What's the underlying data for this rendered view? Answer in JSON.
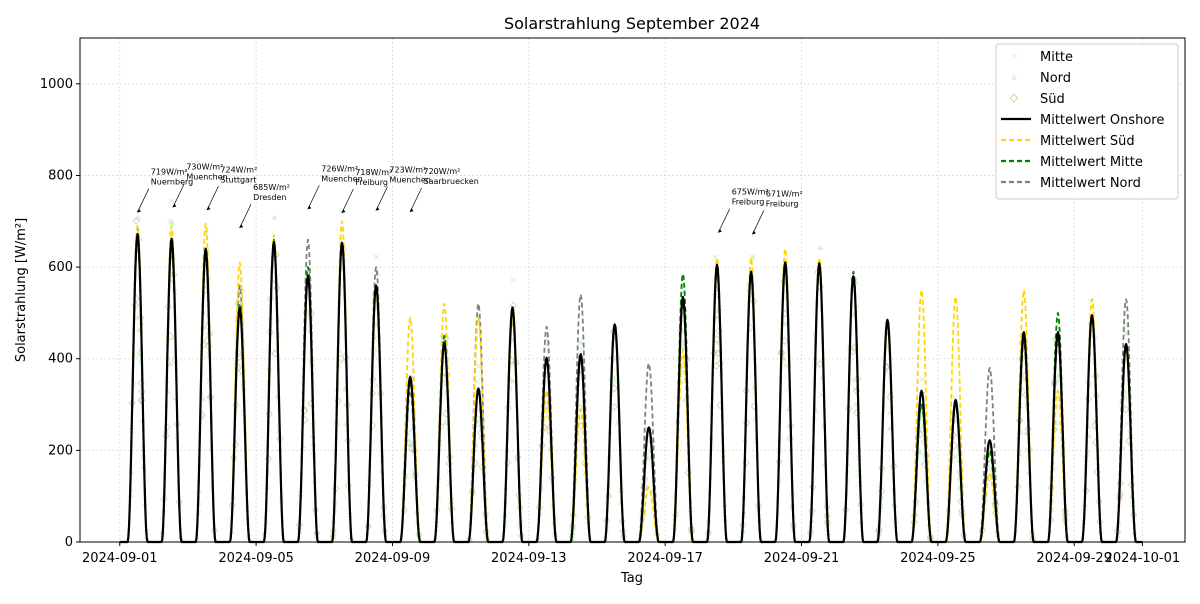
{
  "chart_data": {
    "type": "line",
    "title": "Solarstrahlung September 2024",
    "xlabel": "Tag",
    "ylabel": "Solarstrahlung [W/m²]",
    "ylim": [
      0,
      1100
    ],
    "xlim": [
      "2024-08-30T20:00",
      "2024-10-02T06:00"
    ],
    "grid": true,
    "legend_position": "top-right",
    "x_tick_labels": [
      "2024-09-01",
      "2024-09-05",
      "2024-09-09",
      "2024-09-13",
      "2024-09-17",
      "2024-09-21",
      "2024-09-25",
      "2024-09-29",
      "2024-10-01"
    ],
    "y_tick_labels": [
      "0",
      "200",
      "400",
      "600",
      "800",
      "1000"
    ],
    "days": [
      "2024-09-01",
      "2024-09-02",
      "2024-09-03",
      "2024-09-04",
      "2024-09-05",
      "2024-09-06",
      "2024-09-07",
      "2024-09-08",
      "2024-09-09",
      "2024-09-10",
      "2024-09-11",
      "2024-09-12",
      "2024-09-13",
      "2024-09-14",
      "2024-09-15",
      "2024-09-16",
      "2024-09-17",
      "2024-09-18",
      "2024-09-19",
      "2024-09-20",
      "2024-09-21",
      "2024-09-22",
      "2024-09-23",
      "2024-09-24",
      "2024-09-25",
      "2024-09-26",
      "2024-09-27",
      "2024-09-28",
      "2024-09-29",
      "2024-09-30"
    ],
    "series": [
      {
        "name": "Mittelwert Onshore",
        "color": "#000000",
        "dash": "solid",
        "daily_peak": [
          672,
          662,
          640,
          510,
          655,
          580,
          653,
          560,
          360,
          435,
          335,
          512,
          402,
          410,
          475,
          250,
          535,
          605,
          590,
          610,
          608,
          580,
          485,
          330,
          310,
          222,
          458,
          458,
          495,
          432
        ]
      },
      {
        "name": "Mittelwert Süd",
        "color": "#ffd700",
        "dash": "dashed",
        "daily_peak": [
          690,
          690,
          695,
          610,
          670,
          575,
          700,
          545,
          490,
          520,
          490,
          490,
          330,
          290,
          470,
          120,
          420,
          620,
          620,
          640,
          620,
          580,
          480,
          550,
          535,
          150,
          550,
          330,
          530,
          420
        ]
      },
      {
        "name": "Mittelwert Mitte",
        "color": "#008000",
        "dash": "dashed",
        "daily_peak": [
          685,
          660,
          640,
          520,
          660,
          600,
          650,
          560,
          350,
          450,
          330,
          510,
          400,
          400,
          475,
          250,
          585,
          600,
          585,
          610,
          605,
          590,
          480,
          300,
          300,
          200,
          440,
          500,
          490,
          430
        ]
      },
      {
        "name": "Mittelwert Nord",
        "color": "#808080",
        "dash": "dashed",
        "daily_peak": [
          660,
          640,
          620,
          560,
          640,
          660,
          640,
          600,
          330,
          450,
          520,
          490,
          470,
          540,
          460,
          390,
          520,
          590,
          580,
          600,
          600,
          580,
          470,
          300,
          300,
          380,
          440,
          440,
          490,
          530
        ]
      }
    ],
    "scatter_series": [
      {
        "name": "Mitte",
        "color": "#90ee90",
        "marker": "x"
      },
      {
        "name": "Nord",
        "color": "#90ee90",
        "marker": "triangle"
      },
      {
        "name": "Süd",
        "color": "#d4c9a0",
        "marker": "diamond"
      }
    ],
    "annotations": [
      {
        "label": "719W/m²\nNuernberg",
        "x": "2024-09-01T12:00",
        "y": 719
      },
      {
        "label": "730W/m²\nMuenchen",
        "x": "2024-09-02T13:00",
        "y": 730
      },
      {
        "label": "724W/m²\nStuttgart",
        "x": "2024-09-03T13:00",
        "y": 724
      },
      {
        "label": "685W/m²\nDresden",
        "x": "2024-09-04T12:00",
        "y": 685
      },
      {
        "label": "726W/m²\nMuenchen",
        "x": "2024-09-06T12:00",
        "y": 726
      },
      {
        "label": "718W/m²\nFreiburg",
        "x": "2024-09-07T12:00",
        "y": 718
      },
      {
        "label": "723W/m²\nMuenchen",
        "x": "2024-09-08T12:00",
        "y": 723
      },
      {
        "label": "720W/m²\nSaarbruecken",
        "x": "2024-09-09T12:00",
        "y": 720
      },
      {
        "label": "675W/m²\nFreiburg",
        "x": "2024-09-18T13:00",
        "y": 675
      },
      {
        "label": "671W/m²\nFreiburg",
        "x": "2024-09-19T13:00",
        "y": 671
      }
    ]
  }
}
